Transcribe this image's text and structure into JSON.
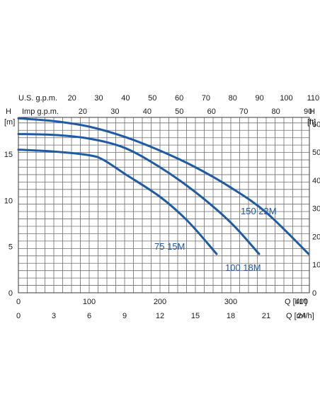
{
  "chart_data": {
    "type": "line",
    "x_axis_primary": {
      "label": "Q [l/1']",
      "ticks": [
        "0",
        "100",
        "200",
        "300",
        "400"
      ],
      "range": [
        0,
        411
      ]
    },
    "x_axis_m3h": {
      "label": "Q [m³/h]",
      "ticks": [
        "0",
        "3",
        "6",
        "9",
        "12",
        "15",
        "18",
        "21",
        "24"
      ]
    },
    "x_axis_us_gpm": {
      "label": "U.S. g.p.m.",
      "ticks": [
        "20",
        "30",
        "40",
        "50",
        "60",
        "70",
        "80",
        "90",
        "100",
        "110"
      ]
    },
    "x_axis_imp_gpm": {
      "label": "Imp g.p.m.",
      "ticks": [
        "20",
        "30",
        "40",
        "50",
        "60",
        "70",
        "80",
        "90"
      ]
    },
    "y_axis_m": {
      "label_top": "H",
      "label_unit": "[m]",
      "ticks": [
        "0",
        "5",
        "10",
        "15"
      ],
      "range": [
        0,
        19
      ]
    },
    "y_axis_ft": {
      "label_top": "H",
      "label_unit": "[ft]",
      "ticks": [
        "0",
        "10",
        "20",
        "30",
        "40",
        "50",
        "60"
      ]
    },
    "grid": true,
    "series": [
      {
        "name": "75 15M",
        "color": "#1f5aa6",
        "x": [
          0,
          50,
          100,
          120,
          150,
          200,
          240,
          280
        ],
        "y": [
          15.5,
          15.3,
          14.9,
          14.4,
          12.9,
          10.4,
          7.7,
          4.2
        ]
      },
      {
        "name": "100 18M",
        "color": "#1f5aa6",
        "x": [
          0,
          50,
          100,
          150,
          200,
          250,
          300,
          340
        ],
        "y": [
          17.2,
          17.1,
          16.7,
          15.7,
          13.6,
          10.9,
          7.6,
          4.2
        ]
      },
      {
        "name": "150 22M",
        "color": "#1f5aa6",
        "x": [
          0,
          50,
          100,
          150,
          200,
          250,
          300,
          350,
          410
        ],
        "y": [
          18.9,
          18.6,
          18.0,
          16.9,
          15.4,
          13.6,
          11.4,
          8.7,
          4.2
        ]
      }
    ]
  }
}
